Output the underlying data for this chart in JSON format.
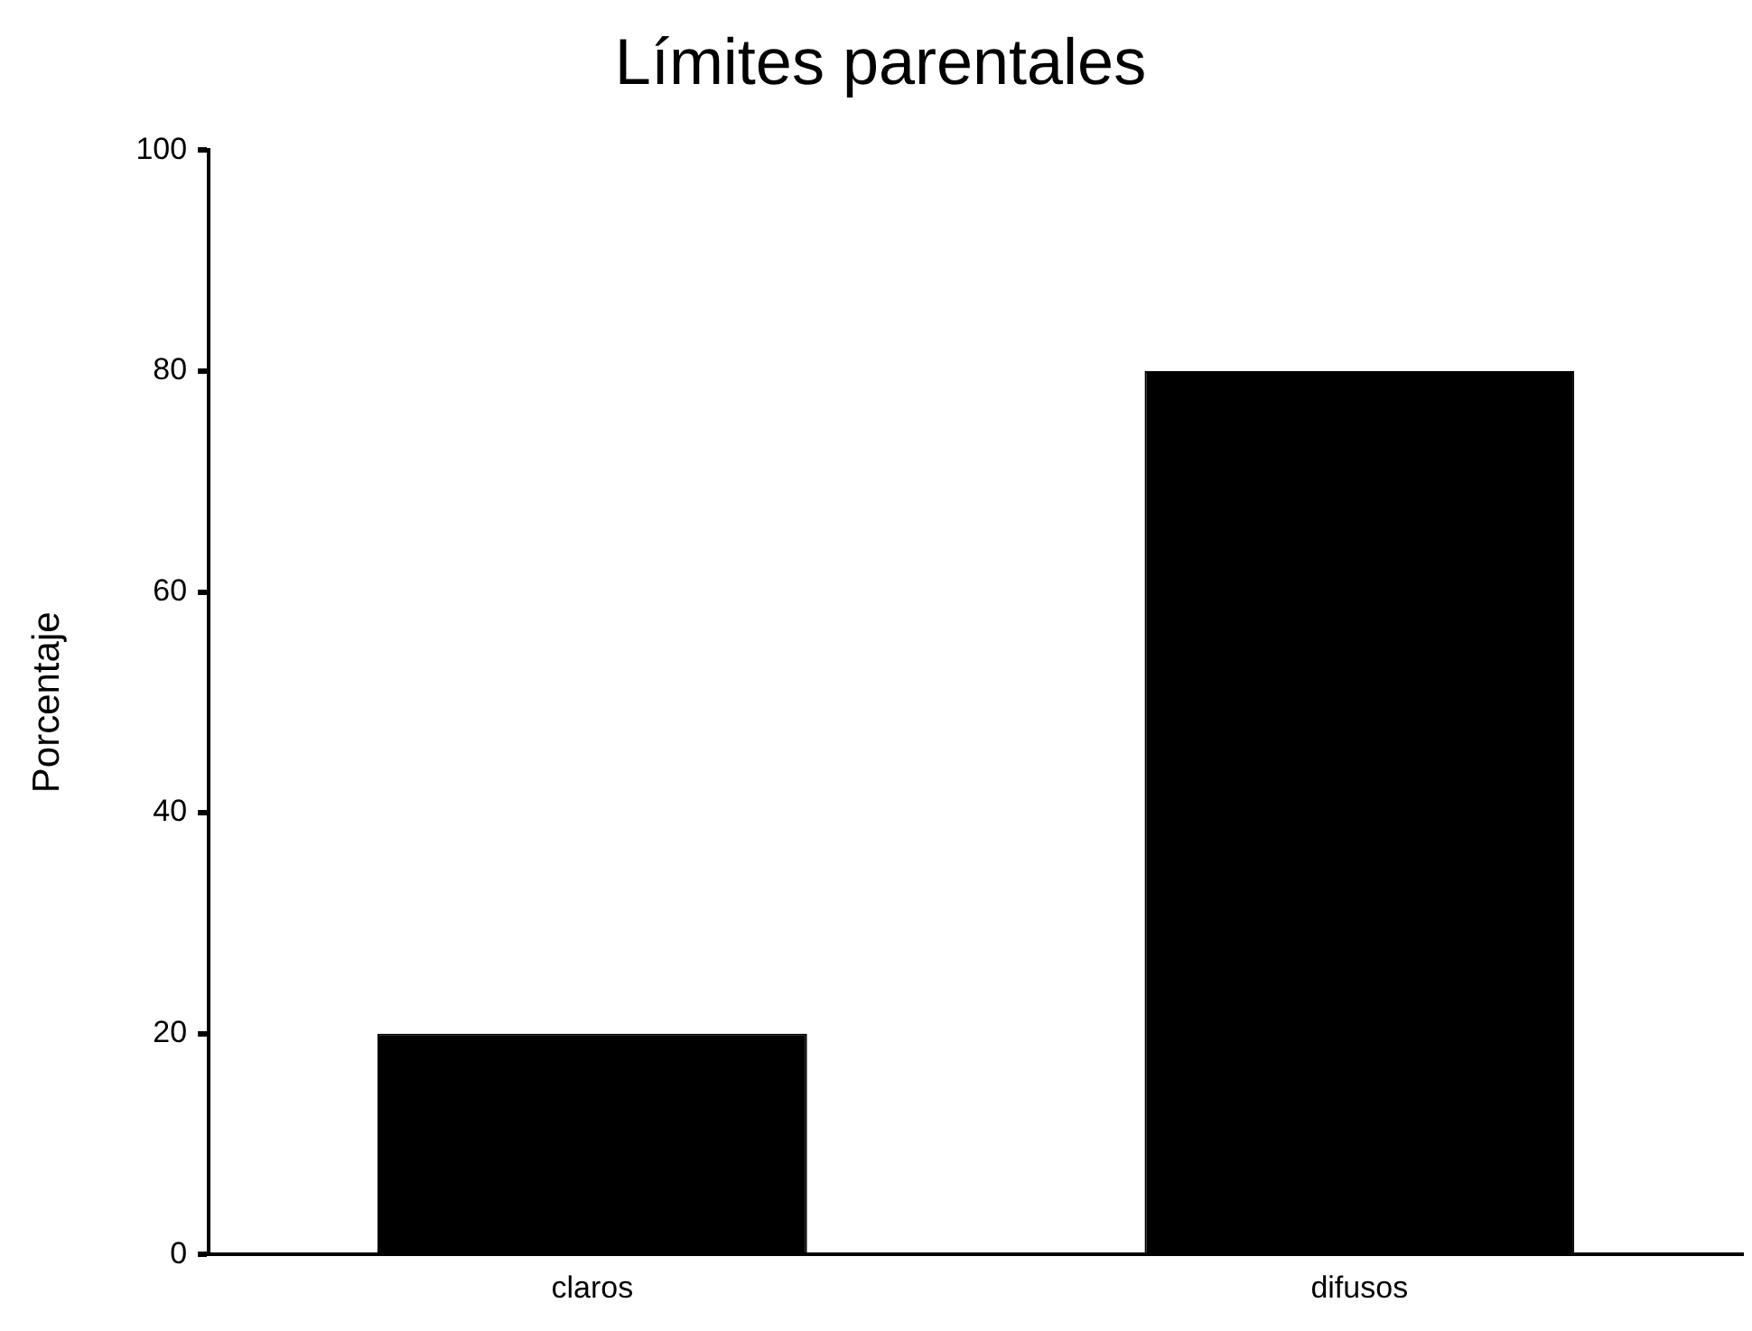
{
  "chart_data": {
    "type": "bar",
    "title": "Límites parentales",
    "ylabel": "Porcentaje",
    "categories": [
      "claros",
      "difusos"
    ],
    "values": [
      20,
      80
    ],
    "color": "#000000",
    "ylim": [
      0,
      100
    ],
    "yticks": [
      0,
      20,
      40,
      60,
      80,
      100
    ],
    "grid": false,
    "legend": false
  }
}
